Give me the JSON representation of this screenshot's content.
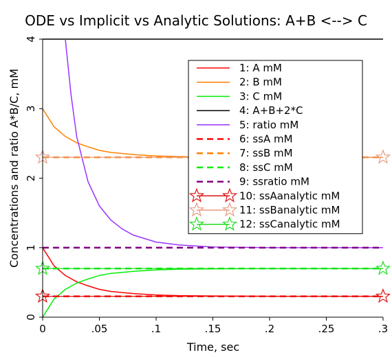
{
  "chart_data": {
    "type": "line",
    "title": "ODE vs Implicit vs Analytic Solutions: A+B <--> C",
    "xlabel": "Time, sec",
    "ylabel": "Concentrations and ratio A*B/C, mM",
    "xlim": [
      0,
      0.3
    ],
    "ylim": [
      0,
      4
    ],
    "xticks": [
      0,
      0.05,
      0.1,
      0.15,
      0.2,
      0.25,
      0.3
    ],
    "xtick_labels": [
      "0",
      ".05",
      ".1",
      ".15",
      ".2",
      ".25",
      ".3"
    ],
    "yticks": [
      0,
      1,
      2,
      3,
      4
    ],
    "ytick_labels": [
      "0",
      "1",
      "2",
      "3",
      "4"
    ],
    "grid": false,
    "legend_position": "top-right",
    "series": [
      {
        "name": "1: A mM",
        "color": "#ff0000",
        "style": "solid",
        "x": [
          0,
          0.01,
          0.02,
          0.03,
          0.04,
          0.05,
          0.06,
          0.08,
          0.1,
          0.12,
          0.15,
          0.2,
          0.25,
          0.3
        ],
        "y": [
          1.0,
          0.74,
          0.6,
          0.51,
          0.45,
          0.4,
          0.37,
          0.34,
          0.32,
          0.31,
          0.305,
          0.3,
          0.3,
          0.3
        ]
      },
      {
        "name": "2: B mM",
        "color": "#ff8000",
        "style": "solid",
        "x": [
          0,
          0.01,
          0.02,
          0.03,
          0.04,
          0.05,
          0.06,
          0.08,
          0.1,
          0.12,
          0.15,
          0.2,
          0.25,
          0.3
        ],
        "y": [
          3.0,
          2.74,
          2.6,
          2.51,
          2.45,
          2.4,
          2.37,
          2.34,
          2.32,
          2.31,
          2.305,
          2.3,
          2.3,
          2.3
        ]
      },
      {
        "name": "3: C mM",
        "color": "#00ee00",
        "style": "solid",
        "x": [
          0,
          0.01,
          0.02,
          0.03,
          0.04,
          0.05,
          0.06,
          0.08,
          0.1,
          0.12,
          0.15,
          0.2,
          0.25,
          0.3
        ],
        "y": [
          0.0,
          0.26,
          0.4,
          0.49,
          0.55,
          0.6,
          0.63,
          0.66,
          0.68,
          0.69,
          0.695,
          0.7,
          0.7,
          0.7
        ]
      },
      {
        "name": "4: A+B+2*C",
        "color": "#000000",
        "style": "solid",
        "x": [
          0,
          0.3
        ],
        "y": [
          4.0,
          4.0
        ]
      },
      {
        "name": "5: ratio mM",
        "color": "#9933ff",
        "style": "solid",
        "x": [
          0.02,
          0.025,
          0.03,
          0.04,
          0.05,
          0.06,
          0.07,
          0.08,
          0.1,
          0.12,
          0.15,
          0.2,
          0.25,
          0.3
        ],
        "y": [
          4.0,
          3.2,
          2.6,
          1.95,
          1.6,
          1.4,
          1.27,
          1.18,
          1.08,
          1.04,
          1.01,
          1.0,
          1.0,
          1.0
        ]
      },
      {
        "name": "6: ssA mM",
        "color": "#ff0000",
        "style": "dashed",
        "x": [
          0,
          0.3
        ],
        "y": [
          0.3,
          0.3
        ]
      },
      {
        "name": "7: ssB mM",
        "color": "#ff8000",
        "style": "dashed",
        "x": [
          0,
          0.3
        ],
        "y": [
          2.3,
          2.3
        ]
      },
      {
        "name": "8: ssC mM",
        "color": "#00ee00",
        "style": "dashed",
        "x": [
          0,
          0.3
        ],
        "y": [
          0.7,
          0.7
        ]
      },
      {
        "name": "9: ssratio mM",
        "color": "#800080",
        "style": "dashed",
        "x": [
          0,
          0.3
        ],
        "y": [
          1.0,
          1.0
        ]
      },
      {
        "name": "10: ssAanalytic mM",
        "color": "#dd1111",
        "style": "star",
        "x": [
          0,
          0.3
        ],
        "y": [
          0.3,
          0.3
        ]
      },
      {
        "name": "11: ssBanalytic mM",
        "color": "#e89a80",
        "style": "star",
        "x": [
          0,
          0.3
        ],
        "y": [
          2.3,
          2.3
        ]
      },
      {
        "name": "12: ssCanalytic mM",
        "color": "#22dd22",
        "style": "star",
        "x": [
          0,
          0.3
        ],
        "y": [
          0.7,
          0.7
        ]
      }
    ]
  }
}
